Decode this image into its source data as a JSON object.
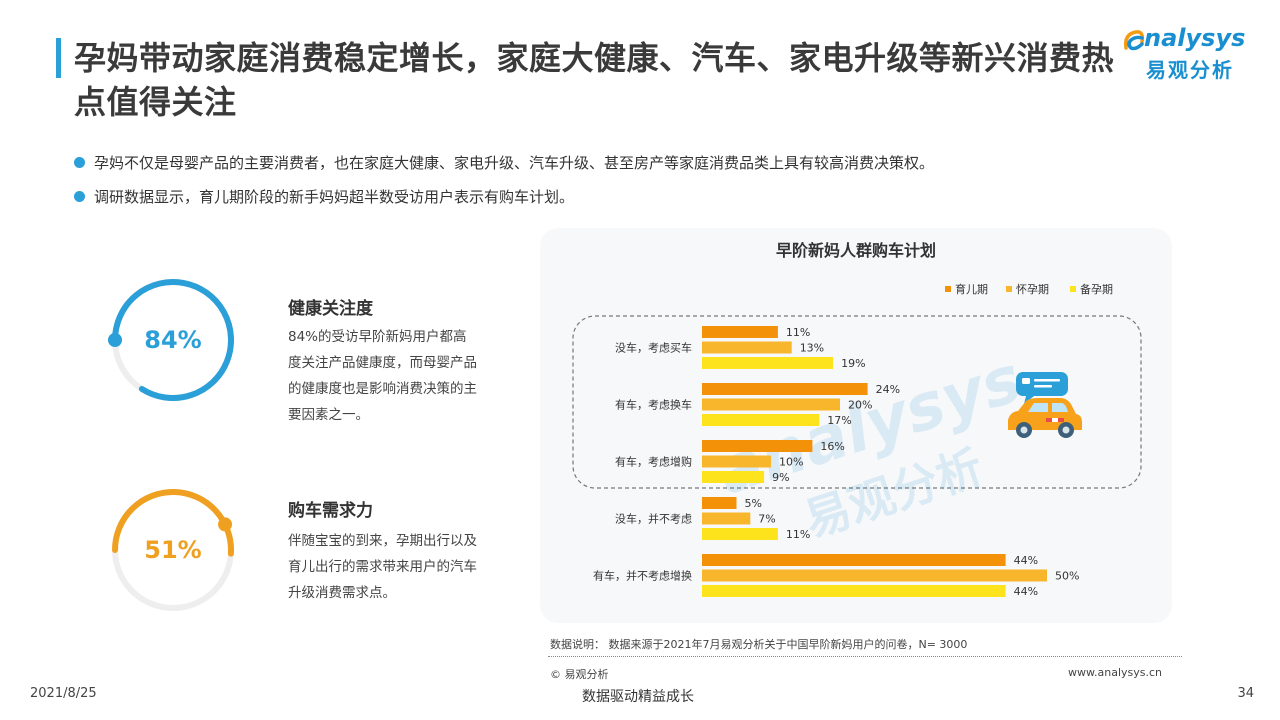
{
  "header": {
    "title": "孕妈带动家庭消费稳定增长，家庭大健康、汽车、家电升级等新兴消费热点值得关注",
    "logo_en": "nalysys",
    "logo_cn": "易观分析"
  },
  "bullets": [
    "孕妈不仅是母婴产品的主要消费者，也在家庭大健康、家电升级、汽车升级、甚至房产等家庭消费品类上具有较高消费决策权。",
    "调研数据显示，育儿期阶段的新手妈妈超半数受访用户表示有购车计划。"
  ],
  "stats": [
    {
      "value_label": "84%",
      "value": 0.84,
      "title": "健康关注度",
      "text": "84%的受访早阶新妈用户都高度关注产品健康度，而母婴产品的健康度也是影响消费决策的主要因素之一。",
      "color": "#2a9fd8"
    },
    {
      "value_label": "51%",
      "value": 0.51,
      "title": "购车需求力",
      "text": "伴随宝宝的到来，孕期出行以及育儿出行的需求带来用户的汽车升级消费需求点。",
      "color": "#f0a020"
    }
  ],
  "chart_data": {
    "type": "bar",
    "orientation": "horizontal",
    "title": "早阶新妈人群购车计划",
    "categories": [
      "没车，考虑买车",
      "有车，考虑换车",
      "有车，考虑增购",
      "没车，并不考虑",
      "有车，并不考虑增换"
    ],
    "series": [
      {
        "name": "育儿期",
        "color": "#f39208",
        "values": [
          11,
          24,
          16,
          5,
          44
        ]
      },
      {
        "name": "怀孕期",
        "color": "#f8b62d",
        "values": [
          13,
          20,
          10,
          7,
          50
        ]
      },
      {
        "name": "备孕期",
        "color": "#fde31c",
        "values": [
          19,
          17,
          9,
          11,
          44
        ]
      }
    ],
    "value_suffix": "%",
    "legend_position": "top-right",
    "grid": false
  },
  "watermark": {
    "en": "analysys",
    "cn": "易观分析"
  },
  "footer": {
    "note": "数据说明：  数据来源于2021年7月易观分析关于中国早阶新妈用户的问卷，N= 3000",
    "copyright": "© 易观分析",
    "website": "www.analysys.cn",
    "date": "2021/8/25",
    "slogan": "数据驱动精益成长",
    "page": "34"
  }
}
